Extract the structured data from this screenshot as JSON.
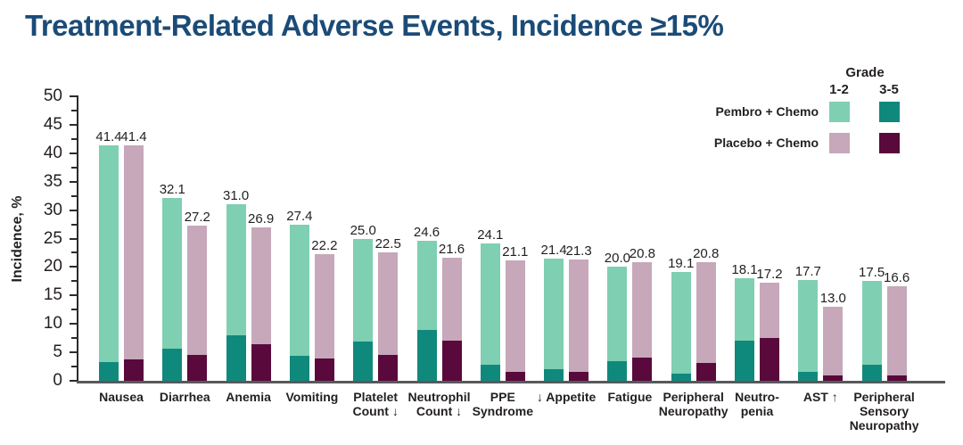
{
  "title": "Treatment-Related Adverse Events, Incidence ≥15%",
  "colors": {
    "title_text": "#1B4B77",
    "axis_line": "#58595B",
    "pembro_grade_1_2": "#7FCFB2",
    "pembro_grade_3_5": "#10897D",
    "placebo_grade_1_2": "#C6A8BA",
    "placebo_grade_3_5": "#59093C"
  },
  "legend": {
    "grade_header": "Grade",
    "grade_cols": [
      "1-2",
      "3-5"
    ],
    "row_labels": [
      "Pembro + Chemo",
      "Placebo + Chemo"
    ]
  },
  "chart_data": {
    "type": "bar",
    "stacked": true,
    "grid": false,
    "legend_position": "top-right",
    "title": "Treatment-Related Adverse Events, Incidence ≥15%",
    "xlabel": "",
    "ylabel": "Incidence, %",
    "ylim": [
      0,
      50
    ],
    "ytick_step": 5,
    "y_minor_tick_step": 2.5,
    "categories": [
      "Nausea",
      "Diarrhea",
      "Anemia",
      "Vomiting",
      "Platelet\nCount ↓",
      "Neutrophil\nCount ↓",
      "PPE\nSyndrome",
      "↓ Appetite",
      "Fatigue",
      "Peripheral\nNeuropathy",
      "Neutro-\npenia",
      "AST ↑",
      "Peripheral\nSensory\nNeuropathy"
    ],
    "series": [
      {
        "name": "Pembro + Chemo",
        "totals_labeled": [
          41.4,
          32.1,
          31.0,
          27.4,
          25.0,
          24.6,
          24.1,
          21.4,
          20.0,
          19.1,
          18.1,
          17.7,
          17.5
        ],
        "grade_3_5_estimated": [
          3.3,
          5.6,
          8.0,
          4.4,
          6.9,
          8.9,
          2.8,
          2.0,
          3.4,
          1.3,
          7.0,
          1.5,
          2.8
        ]
      },
      {
        "name": "Placebo + Chemo",
        "totals_labeled": [
          41.4,
          27.2,
          26.9,
          22.2,
          22.5,
          21.6,
          21.1,
          21.3,
          20.8,
          20.8,
          17.2,
          13.0,
          16.6
        ],
        "grade_3_5_estimated": [
          3.7,
          4.6,
          6.4,
          3.9,
          4.6,
          7.1,
          1.5,
          1.6,
          4.1,
          3.1,
          7.5,
          0.9,
          1.0
        ]
      }
    ]
  }
}
